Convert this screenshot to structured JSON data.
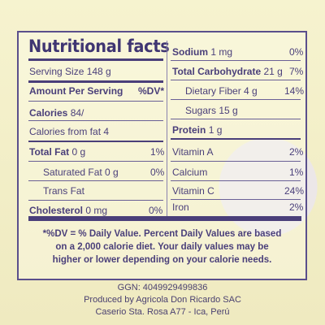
{
  "title": "Nutritional facts",
  "left": {
    "serving_size": "Serving Size 148 g",
    "amount_per_serving": "Amount Per Serving",
    "dv_header": "%DV*",
    "calories_label": "Calories",
    "calories_value": "84/",
    "calories_from_fat": "Calories from fat 4",
    "total_fat": {
      "label": "Total Fat",
      "amount": "0 g",
      "dv": "1%"
    },
    "saturated_fat": {
      "label": "Saturated Fat 0 g",
      "dv": "0%"
    },
    "trans_fat": {
      "label": "Trans Fat"
    },
    "cholesterol": {
      "label": "Cholesterol",
      "amount": "0 mg",
      "dv": "0%"
    }
  },
  "right": {
    "sodium": {
      "label": "Sodium",
      "amount": "1 mg",
      "dv": "0%"
    },
    "total_carb": {
      "label": "Total Carbohydrate",
      "amount": "21 g",
      "dv": "7%"
    },
    "fiber": {
      "label": "Dietary Fiber 4 g",
      "dv": "14%"
    },
    "sugars": {
      "label": "Sugars 15 g"
    },
    "protein": {
      "label": "Protein",
      "amount": "1 g"
    },
    "vitamin_a": {
      "label": "Vitamin A",
      "dv": "2%"
    },
    "calcium": {
      "label": "Calcium",
      "dv": "1%"
    },
    "vitamin_c": {
      "label": "Vitamin C",
      "dv": "24%"
    },
    "iron": {
      "label": "Iron",
      "dv": "2%"
    }
  },
  "footnote": "*%DV = % Daily Value. Percent Daily Values are based on a 2,000 calorie diet. Your daily values may be higher or lower depending on your calorie needs.",
  "ggn": "GGN: 4049929499836",
  "produced_by": "Produced by Agricola Don Ricardo SAC",
  "address": "Caserio Sta. Rosa A77 - Ica, Perú"
}
